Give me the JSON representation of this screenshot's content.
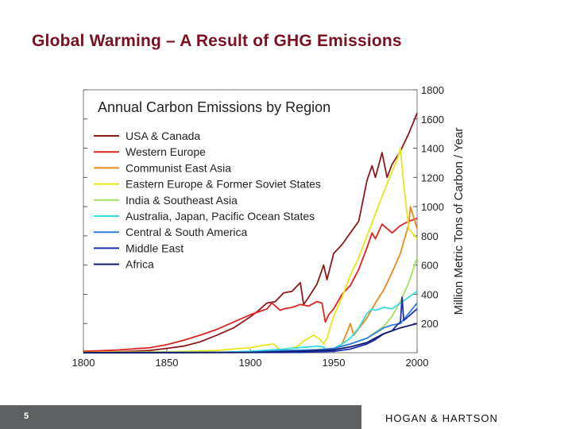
{
  "slide": {
    "title": "Global Warming – A Result of GHG Emissions",
    "page_number": "5",
    "logo_text": "HOGAN & HARTSON"
  },
  "chart_data": {
    "type": "line",
    "title": "Annual Carbon Emissions by Region",
    "xlabel": "",
    "ylabel": "Million Metric Tons of Carbon / Year",
    "xlim": [
      1800,
      2000
    ],
    "ylim": [
      0,
      1800
    ],
    "xticks": [
      1800,
      1850,
      1900,
      1950,
      2000
    ],
    "yticks": [
      200,
      400,
      600,
      800,
      1000,
      1200,
      1400,
      1600,
      1800
    ],
    "grid": false,
    "legend_position": "top-left",
    "series": [
      {
        "name": "USA & Canada",
        "color": "#8b1a1a",
        "x": [
          1800,
          1820,
          1840,
          1850,
          1860,
          1870,
          1880,
          1890,
          1900,
          1905,
          1910,
          1915,
          1920,
          1925,
          1930,
          1932,
          1935,
          1940,
          1944,
          1946,
          1950,
          1955,
          1960,
          1965,
          1970,
          1973,
          1975,
          1979,
          1982,
          1985,
          1990,
          1995,
          2000
        ],
        "y": [
          2,
          6,
          16,
          30,
          45,
          75,
          120,
          170,
          245,
          290,
          340,
          350,
          410,
          420,
          480,
          330,
          380,
          470,
          600,
          500,
          680,
          740,
          820,
          900,
          1180,
          1280,
          1200,
          1370,
          1200,
          1290,
          1380,
          1500,
          1640
        ]
      },
      {
        "name": "Western Europe",
        "color": "#dd2222",
        "x": [
          1800,
          1820,
          1840,
          1850,
          1860,
          1870,
          1880,
          1890,
          1900,
          1905,
          1910,
          1913,
          1918,
          1920,
          1925,
          1930,
          1935,
          1940,
          1943,
          1945,
          1947,
          1950,
          1955,
          1960,
          1965,
          1970,
          1973,
          1975,
          1979,
          1985,
          1990,
          1995,
          2000
        ],
        "y": [
          10,
          18,
          35,
          55,
          85,
          120,
          160,
          210,
          260,
          280,
          300,
          340,
          290,
          300,
          310,
          330,
          320,
          350,
          340,
          210,
          260,
          300,
          400,
          460,
          570,
          720,
          820,
          780,
          880,
          820,
          870,
          900,
          920
        ]
      },
      {
        "name": "Communist East Asia",
        "color": "#e8891b",
        "x": [
          1800,
          1900,
          1920,
          1945,
          1950,
          1955,
          1958,
          1960,
          1962,
          1970,
          1975,
          1980,
          1985,
          1990,
          1995,
          1996,
          2000
        ],
        "y": [
          0,
          2,
          8,
          15,
          20,
          60,
          140,
          200,
          120,
          240,
          340,
          430,
          550,
          680,
          880,
          1000,
          850
        ]
      },
      {
        "name": "Eastern Europe & Former Soviet States",
        "color": "#e6e61e",
        "x": [
          1800,
          1850,
          1880,
          1900,
          1910,
          1914,
          1918,
          1920,
          1928,
          1932,
          1938,
          1942,
          1944,
          1946,
          1950,
          1955,
          1960,
          1965,
          1970,
          1975,
          1980,
          1985,
          1988,
          1990,
          1992,
          1995,
          2000
        ],
        "y": [
          2,
          6,
          15,
          35,
          55,
          60,
          20,
          20,
          40,
          80,
          120,
          90,
          60,
          100,
          250,
          380,
          530,
          650,
          800,
          950,
          1100,
          1240,
          1320,
          1400,
          1150,
          850,
          780
        ]
      },
      {
        "name": "India & Southeast Asia",
        "color": "#a6e05c",
        "x": [
          1800,
          1900,
          1930,
          1950,
          1960,
          1970,
          1980,
          1985,
          1990,
          1995,
          2000
        ],
        "y": [
          0,
          5,
          15,
          30,
          60,
          100,
          180,
          250,
          350,
          480,
          650
        ]
      },
      {
        "name": "Australia, Japan, Pacific Ocean States",
        "color": "#33dddd",
        "x": [
          1800,
          1880,
          1900,
          1920,
          1940,
          1944,
          1946,
          1950,
          1955,
          1960,
          1965,
          1970,
          1973,
          1975,
          1980,
          1985,
          1990,
          1995,
          2000
        ],
        "y": [
          0,
          2,
          10,
          25,
          45,
          40,
          10,
          30,
          60,
          100,
          170,
          270,
          300,
          290,
          310,
          300,
          340,
          380,
          420
        ]
      },
      {
        "name": "Central & South America",
        "color": "#2f7fe0",
        "x": [
          1800,
          1900,
          1920,
          1940,
          1950,
          1960,
          1970,
          1980,
          1985,
          1990,
          1995,
          2000
        ],
        "y": [
          0,
          3,
          15,
          20,
          30,
          60,
          100,
          170,
          190,
          200,
          270,
          340
        ]
      },
      {
        "name": "Middle East",
        "color": "#1c2fb0",
        "x": [
          1800,
          1930,
          1950,
          1960,
          1970,
          1975,
          1980,
          1985,
          1988,
          1990,
          1991,
          1992,
          1995,
          2000
        ],
        "y": [
          0,
          2,
          10,
          25,
          60,
          90,
          130,
          150,
          190,
          210,
          380,
          220,
          250,
          300
        ]
      },
      {
        "name": "Africa",
        "color": "#101a6a",
        "x": [
          1800,
          1900,
          1930,
          1950,
          1960,
          1970,
          1980,
          1990,
          2000
        ],
        "y": [
          0,
          2,
          10,
          20,
          40,
          70,
          130,
          170,
          200
        ]
      }
    ]
  }
}
